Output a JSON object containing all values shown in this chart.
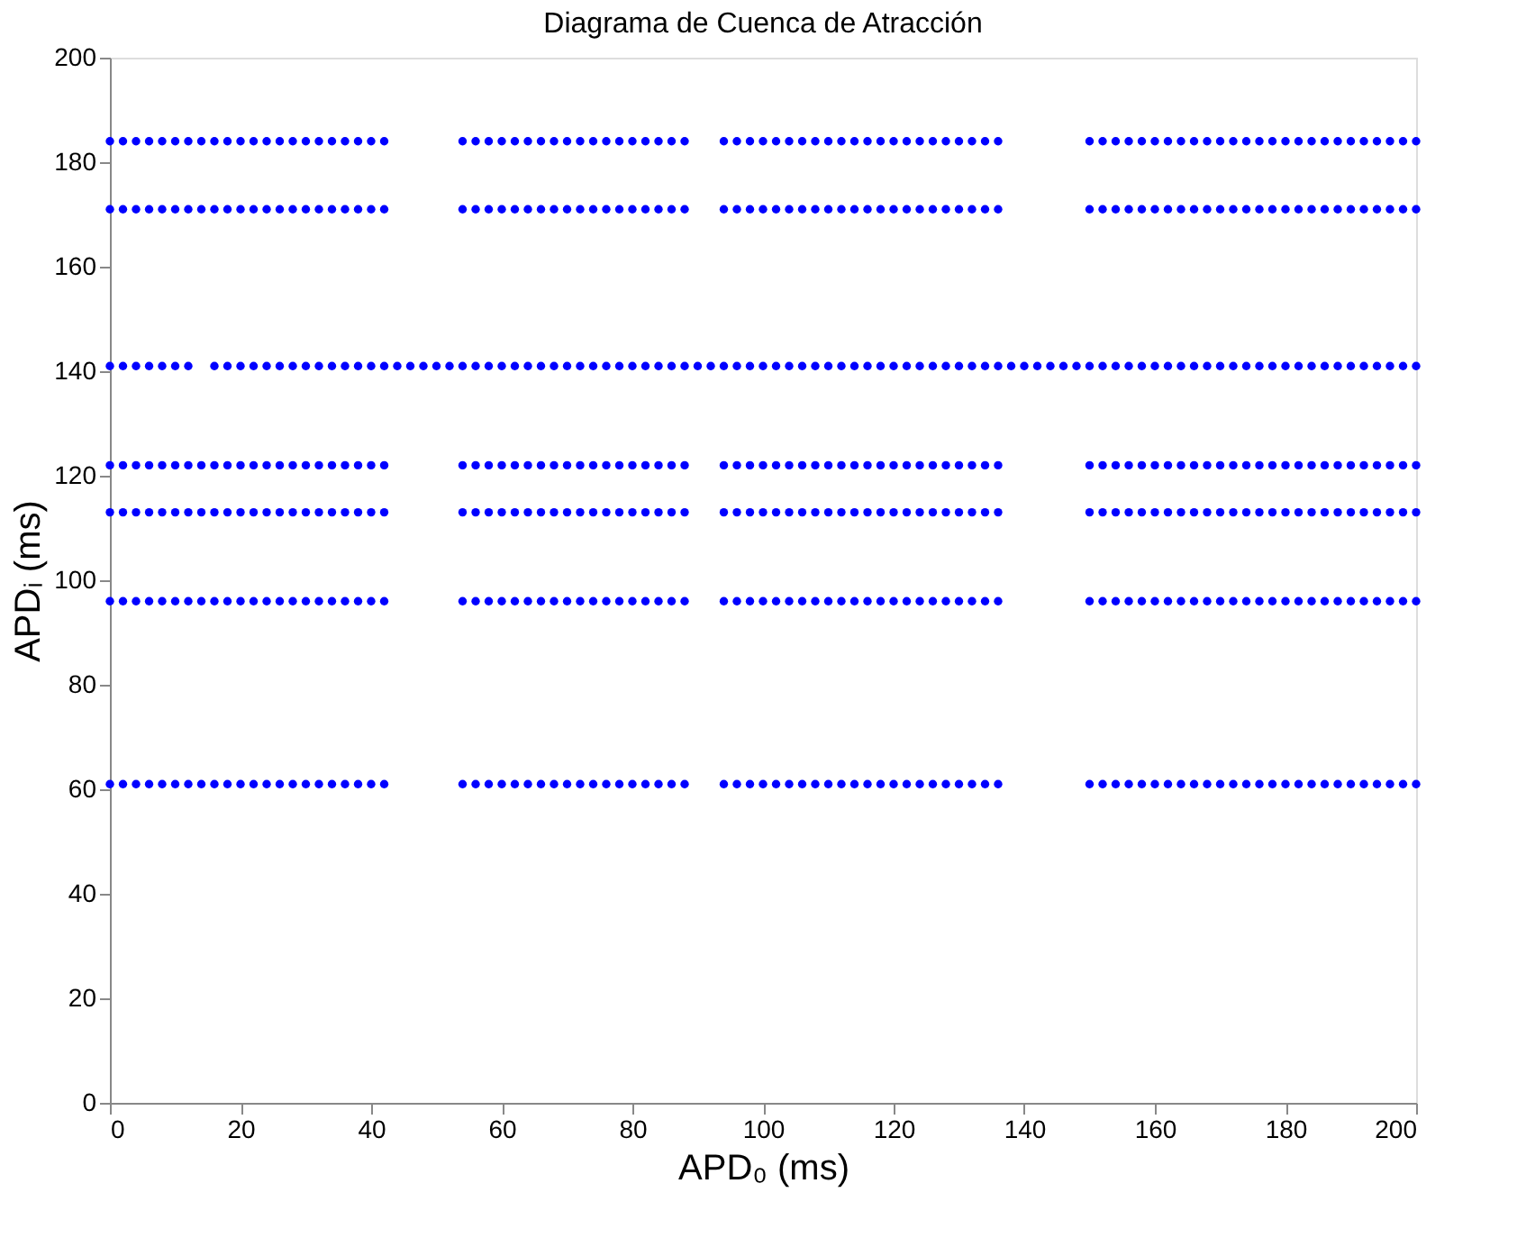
{
  "chart_data": {
    "type": "scatter",
    "title": "Diagrama de Cuenca de Atracción",
    "xlabel": "APD₀ (ms)",
    "ylabel": "APDᵢ (ms)",
    "xlim": [
      0,
      200
    ],
    "xticks": [
      0,
      20,
      40,
      60,
      80,
      100,
      120,
      140,
      160,
      180,
      200
    ],
    "ylim": [
      0,
      200
    ],
    "yticks": [
      0,
      20,
      40,
      60,
      80,
      100,
      120,
      140,
      160,
      180,
      200
    ],
    "marker": "circle",
    "grid": false,
    "legend": false,
    "x": [
      0,
      2,
      4,
      6,
      8,
      10,
      12,
      14,
      16,
      18,
      20,
      22,
      24,
      26,
      28,
      30,
      32,
      34,
      36,
      38,
      40,
      42,
      44,
      46,
      48,
      50,
      52,
      54,
      56,
      58,
      60,
      62,
      64,
      66,
      68,
      70,
      72,
      74,
      76,
      78,
      80,
      82,
      84,
      86,
      88,
      90,
      92,
      94,
      96,
      98,
      100,
      102,
      104,
      106,
      108,
      110,
      112,
      114,
      116,
      118,
      120,
      122,
      124,
      126,
      128,
      130,
      132,
      134,
      136,
      138,
      140,
      142,
      144,
      146,
      148,
      150,
      152,
      154,
      156,
      158,
      160,
      162,
      164,
      166,
      168,
      170,
      172,
      174,
      176,
      178,
      180,
      182,
      184,
      186,
      188,
      190,
      192,
      194,
      196,
      198,
      200
    ],
    "series": [
      {
        "color": "#0000ff",
        "values": [
          184,
          184,
          184,
          184,
          184,
          184,
          184,
          184,
          184,
          184,
          184,
          184,
          184,
          184,
          184,
          184,
          184,
          184,
          184,
          184,
          184,
          184,
          null,
          null,
          null,
          null,
          null,
          184,
          184,
          184,
          184,
          184,
          184,
          184,
          184,
          184,
          184,
          184,
          184,
          184,
          184,
          184,
          184,
          184,
          184,
          null,
          null,
          184,
          184,
          184,
          184,
          184,
          184,
          184,
          184,
          184,
          184,
          184,
          184,
          184,
          184,
          184,
          184,
          184,
          184,
          184,
          184,
          184,
          184,
          null,
          null,
          null,
          null,
          null,
          null,
          184,
          184,
          184,
          184,
          184,
          184,
          184,
          184,
          184,
          184,
          184,
          184,
          184,
          184,
          184,
          184,
          184,
          184,
          184,
          184,
          184,
          184,
          184,
          184,
          184,
          184
        ]
      },
      {
        "color": "#0000ff",
        "values": [
          171,
          171,
          171,
          171,
          171,
          171,
          171,
          171,
          171,
          171,
          171,
          171,
          171,
          171,
          171,
          171,
          171,
          171,
          171,
          171,
          171,
          171,
          null,
          null,
          null,
          null,
          null,
          171,
          171,
          171,
          171,
          171,
          171,
          171,
          171,
          171,
          171,
          171,
          171,
          171,
          171,
          171,
          171,
          171,
          171,
          null,
          null,
          171,
          171,
          171,
          171,
          171,
          171,
          171,
          171,
          171,
          171,
          171,
          171,
          171,
          171,
          171,
          171,
          171,
          171,
          171,
          171,
          171,
          171,
          null,
          null,
          null,
          null,
          null,
          null,
          171,
          171,
          171,
          171,
          171,
          171,
          171,
          171,
          171,
          171,
          171,
          171,
          171,
          171,
          171,
          171,
          171,
          171,
          171,
          171,
          171,
          171,
          171,
          171,
          171,
          171
        ]
      },
      {
        "color": "#0000ff",
        "values": [
          141,
          141,
          141,
          141,
          141,
          141,
          141,
          null,
          141,
          141,
          141,
          141,
          141,
          141,
          141,
          141,
          141,
          141,
          141,
          141,
          141,
          141,
          141,
          141,
          141,
          141,
          141,
          141,
          141,
          141,
          141,
          141,
          141,
          141,
          141,
          141,
          141,
          141,
          141,
          141,
          141,
          141,
          141,
          141,
          141,
          141,
          141,
          141,
          141,
          141,
          141,
          141,
          141,
          141,
          141,
          141,
          141,
          141,
          141,
          141,
          141,
          141,
          141,
          141,
          141,
          141,
          141,
          141,
          141,
          141,
          141,
          141,
          141,
          141,
          141,
          141,
          141,
          141,
          141,
          141,
          141,
          141,
          141,
          141,
          141,
          141,
          141,
          141,
          141,
          141,
          141,
          141,
          141,
          141,
          141,
          141,
          141,
          141,
          141,
          141,
          141
        ]
      },
      {
        "color": "#0000ff",
        "values": [
          122,
          122,
          122,
          122,
          122,
          122,
          122,
          122,
          122,
          122,
          122,
          122,
          122,
          122,
          122,
          122,
          122,
          122,
          122,
          122,
          122,
          122,
          null,
          null,
          null,
          null,
          null,
          122,
          122,
          122,
          122,
          122,
          122,
          122,
          122,
          122,
          122,
          122,
          122,
          122,
          122,
          122,
          122,
          122,
          122,
          null,
          null,
          122,
          122,
          122,
          122,
          122,
          122,
          122,
          122,
          122,
          122,
          122,
          122,
          122,
          122,
          122,
          122,
          122,
          122,
          122,
          122,
          122,
          122,
          null,
          null,
          null,
          null,
          null,
          null,
          122,
          122,
          122,
          122,
          122,
          122,
          122,
          122,
          122,
          122,
          122,
          122,
          122,
          122,
          122,
          122,
          122,
          122,
          122,
          122,
          122,
          122,
          122,
          122,
          122,
          122
        ]
      },
      {
        "color": "#0000ff",
        "values": [
          113,
          113,
          113,
          113,
          113,
          113,
          113,
          113,
          113,
          113,
          113,
          113,
          113,
          113,
          113,
          113,
          113,
          113,
          113,
          113,
          113,
          113,
          null,
          null,
          null,
          null,
          null,
          113,
          113,
          113,
          113,
          113,
          113,
          113,
          113,
          113,
          113,
          113,
          113,
          113,
          113,
          113,
          113,
          113,
          113,
          null,
          null,
          113,
          113,
          113,
          113,
          113,
          113,
          113,
          113,
          113,
          113,
          113,
          113,
          113,
          113,
          113,
          113,
          113,
          113,
          113,
          113,
          113,
          113,
          null,
          null,
          null,
          null,
          null,
          null,
          113,
          113,
          113,
          113,
          113,
          113,
          113,
          113,
          113,
          113,
          113,
          113,
          113,
          113,
          113,
          113,
          113,
          113,
          113,
          113,
          113,
          113,
          113,
          113,
          113,
          113
        ]
      },
      {
        "color": "#0000ff",
        "values": [
          96,
          96,
          96,
          96,
          96,
          96,
          96,
          96,
          96,
          96,
          96,
          96,
          96,
          96,
          96,
          96,
          96,
          96,
          96,
          96,
          96,
          96,
          null,
          null,
          null,
          null,
          null,
          96,
          96,
          96,
          96,
          96,
          96,
          96,
          96,
          96,
          96,
          96,
          96,
          96,
          96,
          96,
          96,
          96,
          96,
          null,
          null,
          96,
          96,
          96,
          96,
          96,
          96,
          96,
          96,
          96,
          96,
          96,
          96,
          96,
          96,
          96,
          96,
          96,
          96,
          96,
          96,
          96,
          96,
          null,
          null,
          null,
          null,
          null,
          null,
          96,
          96,
          96,
          96,
          96,
          96,
          96,
          96,
          96,
          96,
          96,
          96,
          96,
          96,
          96,
          96,
          96,
          96,
          96,
          96,
          96,
          96,
          96,
          96,
          96,
          96
        ]
      },
      {
        "color": "#0000ff",
        "values": [
          61,
          61,
          61,
          61,
          61,
          61,
          61,
          61,
          61,
          61,
          61,
          61,
          61,
          61,
          61,
          61,
          61,
          61,
          61,
          61,
          61,
          61,
          null,
          null,
          null,
          null,
          null,
          61,
          61,
          61,
          61,
          61,
          61,
          61,
          61,
          61,
          61,
          61,
          61,
          61,
          61,
          61,
          61,
          61,
          61,
          null,
          null,
          61,
          61,
          61,
          61,
          61,
          61,
          61,
          61,
          61,
          61,
          61,
          61,
          61,
          61,
          61,
          61,
          61,
          61,
          61,
          61,
          61,
          61,
          null,
          null,
          null,
          null,
          null,
          null,
          61,
          61,
          61,
          61,
          61,
          61,
          61,
          61,
          61,
          61,
          61,
          61,
          61,
          61,
          61,
          61,
          61,
          61,
          61,
          61,
          61,
          61,
          61,
          61,
          61,
          61
        ]
      }
    ]
  }
}
